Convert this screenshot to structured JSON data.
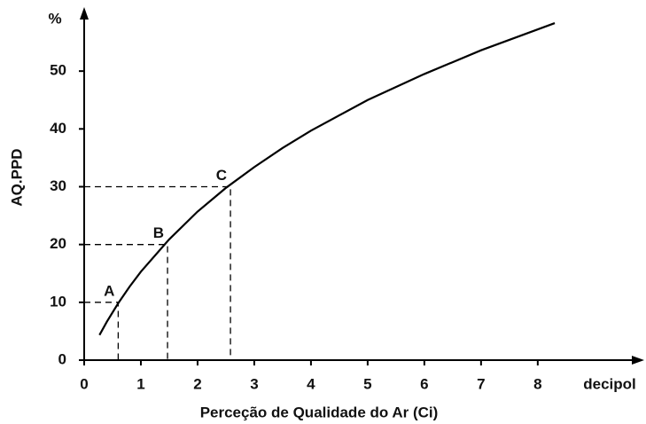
{
  "chart_data": {
    "type": "line",
    "x_unit": "decipol",
    "y_unit": "%",
    "xlabel": "Perceção de Qualidade do Ar (Ci)",
    "ylabel": "AQ.PPD",
    "x": [
      0.27,
      0.4,
      0.6,
      0.8,
      1,
      1.5,
      2,
      2.5,
      3,
      3.5,
      4,
      5,
      6,
      7,
      8.3
    ],
    "series": [
      {
        "color": "#000000",
        "values": [
          4.35,
          6.64,
          9.84,
          12.7,
          15.3,
          20.9,
          25.7,
          29.8,
          33.4,
          36.7,
          39.7,
          45.0,
          49.5,
          53.6,
          58.3
        ]
      }
    ],
    "annotations": [
      {
        "label": "A",
        "x": 0.6,
        "y": 10
      },
      {
        "label": "B",
        "x": 1.47,
        "y": 20
      },
      {
        "label": "C",
        "x": 2.58,
        "y": 30
      }
    ],
    "xlim": [
      0,
      9.8
    ],
    "ylim": [
      0,
      60
    ],
    "xticks": [
      0,
      1,
      2,
      3,
      4,
      5,
      6,
      7,
      8
    ],
    "yticks": [
      0,
      10,
      20,
      30,
      40,
      50
    ]
  }
}
